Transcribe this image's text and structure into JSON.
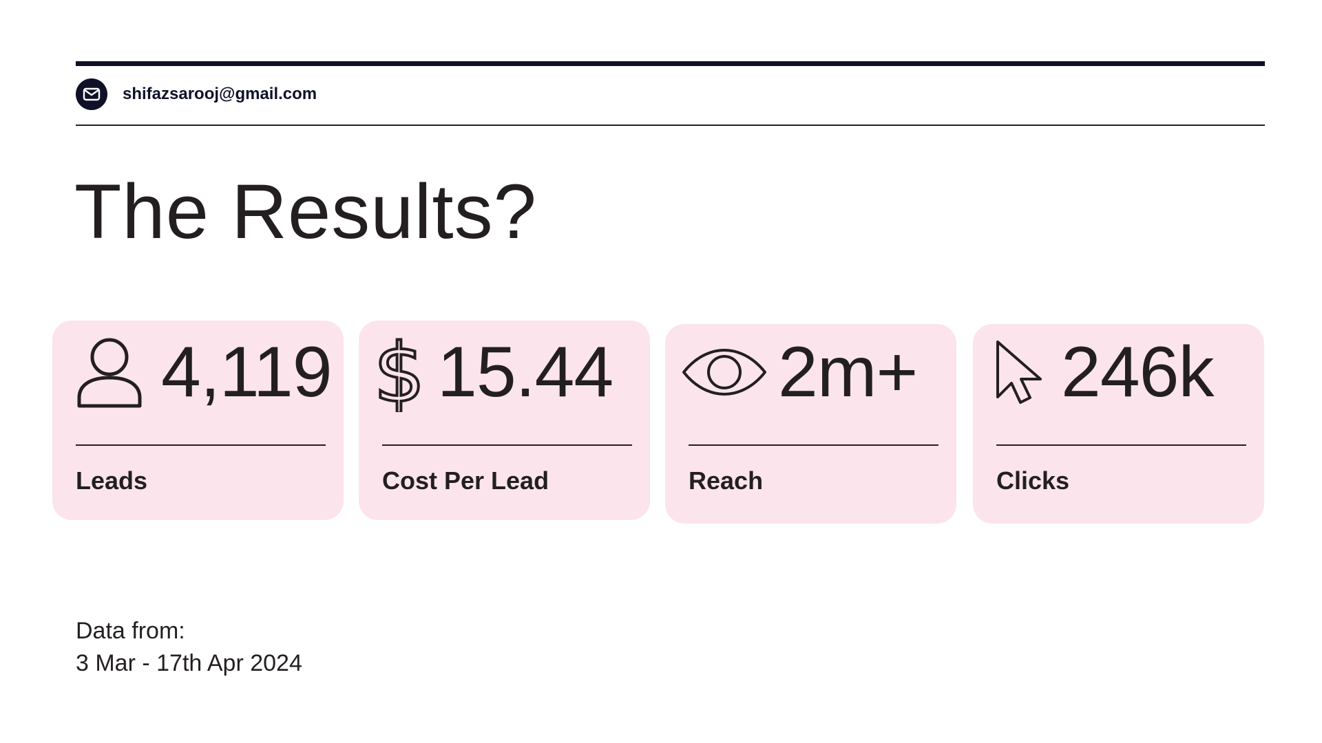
{
  "header": {
    "email": "shifazsarooj@gmail.com",
    "email_icon": "envelope-icon"
  },
  "title": "The Results?",
  "metrics": [
    {
      "icon": "person-icon",
      "value": "4,119",
      "label": "Leads"
    },
    {
      "icon": "dollar-icon",
      "value": "15.44",
      "label": "Cost Per Lead"
    },
    {
      "icon": "eye-icon",
      "value": "2m+",
      "label": "Reach"
    },
    {
      "icon": "cursor-icon",
      "value": "246k",
      "label": "Clicks"
    }
  ],
  "footer": {
    "line1": "Data from:",
    "line2": "3 Mar - 17th Apr 2024"
  },
  "colors": {
    "navy": "#0f1128",
    "card_bg": "#fce4ec",
    "text": "#231f20"
  }
}
